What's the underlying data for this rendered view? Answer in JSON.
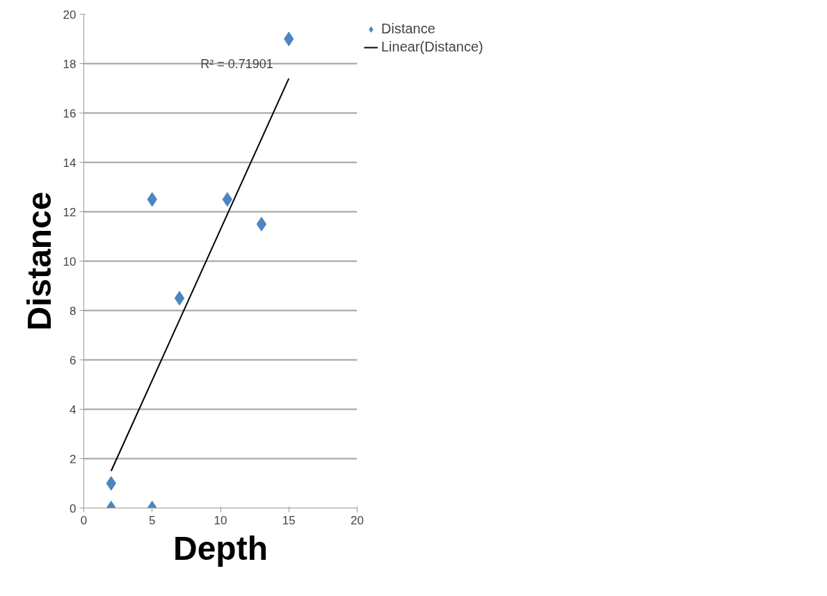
{
  "chart_data": {
    "type": "scatter",
    "xlabel": "Depth",
    "ylabel": "Distance",
    "xlim": [
      0,
      20
    ],
    "xticks": [
      0,
      5,
      10,
      15,
      20
    ],
    "ylim": [
      0,
      20
    ],
    "yticks": [
      0,
      2,
      4,
      6,
      8,
      10,
      12,
      14,
      16,
      18,
      20
    ],
    "grid": "y",
    "legend": "right",
    "series": [
      {
        "name": "Distance",
        "type": "scatter",
        "marker": "diamond",
        "color": "#4a86c0",
        "x": [
          2,
          2,
          5,
          5,
          7,
          10.5,
          13,
          15
        ],
        "values": [
          1,
          0,
          0,
          12.5,
          8.5,
          12.5,
          11.5,
          19
        ]
      },
      {
        "name": "Linear(Distance)",
        "type": "line",
        "marker": "none",
        "line_style": "solid",
        "color": "#000000",
        "x": [
          2,
          15
        ],
        "values": [
          1.5,
          17.4
        ]
      }
    ],
    "annotations": [
      "R² = 0.71901"
    ]
  }
}
